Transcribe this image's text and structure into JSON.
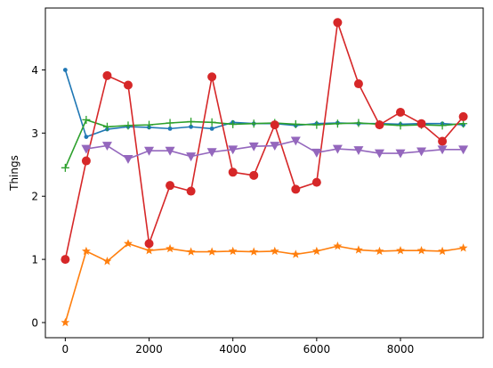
{
  "chart_data": {
    "type": "line",
    "title": "",
    "xlabel": "",
    "ylabel": "Things",
    "xlim": [
      -475,
      9975
    ],
    "ylim": [
      -0.24,
      4.98
    ],
    "x_ticks": [
      0,
      2000,
      4000,
      6000,
      8000
    ],
    "x_tick_labels": [
      "0",
      "2000",
      "4000",
      "6000",
      "8000"
    ],
    "y_ticks": [
      0,
      1,
      2,
      3,
      4
    ],
    "y_tick_labels": [
      "0",
      "1",
      "2",
      "3",
      "4"
    ],
    "grid": false,
    "legend": "none",
    "x": [
      0,
      500,
      1000,
      1500,
      2000,
      2500,
      3000,
      3500,
      4000,
      4500,
      5000,
      5500,
      6000,
      6500,
      7000,
      7500,
      8000,
      8500,
      9000,
      9500
    ],
    "series": [
      {
        "color": "#1f77b4",
        "marker": "point",
        "values": [
          4.0,
          2.94,
          3.06,
          3.1,
          3.09,
          3.07,
          3.1,
          3.07,
          3.17,
          3.15,
          3.15,
          3.12,
          3.15,
          3.16,
          3.15,
          3.15,
          3.14,
          3.15,
          3.15,
          3.13
        ]
      },
      {
        "color": "#ff7f0e",
        "marker": "star",
        "values": [
          0.0,
          1.13,
          0.97,
          1.25,
          1.14,
          1.17,
          1.12,
          1.12,
          1.13,
          1.12,
          1.13,
          1.08,
          1.13,
          1.21,
          1.15,
          1.13,
          1.14,
          1.14,
          1.13,
          1.18
        ]
      },
      {
        "color": "#2ca02c",
        "marker": "plus",
        "values": [
          2.45,
          3.21,
          3.1,
          3.12,
          3.13,
          3.16,
          3.18,
          3.17,
          3.14,
          3.15,
          3.16,
          3.14,
          3.13,
          3.15,
          3.16,
          3.14,
          3.12,
          3.13,
          3.12,
          3.15
        ]
      },
      {
        "color": "#d62728",
        "marker": "circle",
        "values": [
          1.0,
          2.56,
          3.91,
          3.76,
          1.25,
          2.17,
          2.08,
          3.89,
          2.38,
          2.33,
          3.13,
          2.11,
          2.22,
          4.75,
          3.78,
          3.13,
          3.33,
          3.15,
          2.87,
          3.26
        ]
      },
      {
        "color": "#9467bd",
        "marker": "triangle-down",
        "values": [
          null,
          2.75,
          2.8,
          2.59,
          2.72,
          2.72,
          2.63,
          2.7,
          2.74,
          2.79,
          2.8,
          2.88,
          2.69,
          2.75,
          2.73,
          2.68,
          2.68,
          2.71,
          2.74,
          2.74
        ]
      }
    ]
  }
}
